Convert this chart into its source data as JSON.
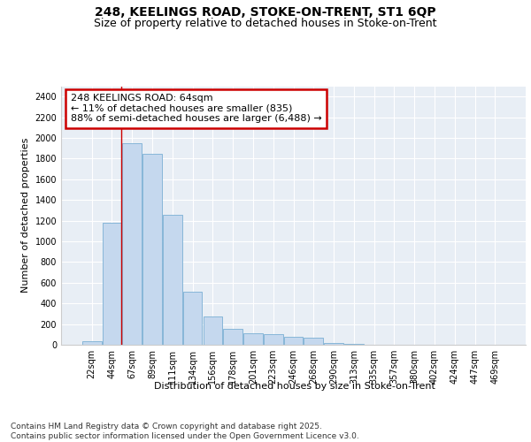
{
  "title_line1": "248, KEELINGS ROAD, STOKE-ON-TRENT, ST1 6QP",
  "title_line2": "Size of property relative to detached houses in Stoke-on-Trent",
  "xlabel": "Distribution of detached houses by size in Stoke-on-Trent",
  "ylabel": "Number of detached properties",
  "categories": [
    "22sqm",
    "44sqm",
    "67sqm",
    "89sqm",
    "111sqm",
    "134sqm",
    "156sqm",
    "178sqm",
    "201sqm",
    "223sqm",
    "246sqm",
    "268sqm",
    "290sqm",
    "313sqm",
    "335sqm",
    "357sqm",
    "380sqm",
    "402sqm",
    "424sqm",
    "447sqm",
    "469sqm"
  ],
  "values": [
    30,
    1180,
    1950,
    1850,
    1260,
    510,
    270,
    155,
    110,
    100,
    80,
    65,
    20,
    5,
    3,
    2,
    1,
    1,
    1,
    1,
    1
  ],
  "bar_color": "#c5d8ee",
  "bar_edge_color": "#7aafd4",
  "bg_color": "#e8eef5",
  "grid_color": "#ffffff",
  "annotation_text": "248 KEELINGS ROAD: 64sqm\n← 11% of detached houses are smaller (835)\n88% of semi-detached houses are larger (6,488) →",
  "annotation_box_color": "#ffffff",
  "annotation_box_edge": "#cc0000",
  "vline_color": "#cc0000",
  "ylim": [
    0,
    2500
  ],
  "yticks": [
    0,
    200,
    400,
    600,
    800,
    1000,
    1200,
    1400,
    1600,
    1800,
    2000,
    2200,
    2400
  ],
  "footnote": "Contains HM Land Registry data © Crown copyright and database right 2025.\nContains public sector information licensed under the Open Government Licence v3.0.",
  "title_fontsize": 10,
  "subtitle_fontsize": 9,
  "axis_label_fontsize": 8,
  "tick_fontsize": 7,
  "annot_fontsize": 8,
  "footnote_fontsize": 6.5
}
